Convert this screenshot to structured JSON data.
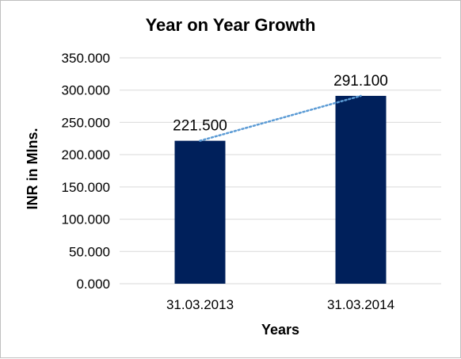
{
  "chart_data": {
    "type": "bar",
    "title": "Year on Year Growth",
    "xlabel": "Years",
    "ylabel": "INR in Mlns.",
    "categories": [
      "31.03.2013",
      "31.03.2014"
    ],
    "values": [
      221.5,
      291.1
    ],
    "data_labels": [
      "221.500",
      "291.100"
    ],
    "ylim": [
      0,
      350
    ],
    "y_ticks": [
      "0.000",
      "50.000",
      "100.000",
      "150.000",
      "200.000",
      "250.000",
      "300.000",
      "350.000"
    ],
    "grid": true,
    "legend": "none",
    "trendline": "linear, dotted",
    "colors": {
      "bar": "#00205b",
      "trendline": "#5b9bd5",
      "grid": "#d9d9d9"
    }
  }
}
